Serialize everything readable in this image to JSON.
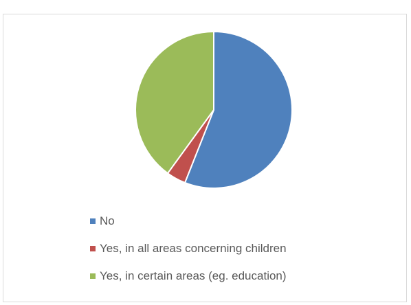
{
  "chart_data": {
    "type": "pie",
    "title": "",
    "categories": [
      "No",
      "Yes, in all areas concerning children",
      "Yes, in certain areas (eg. education)"
    ],
    "values": [
      56,
      4,
      40
    ],
    "colors": [
      "#4f81bd",
      "#c0504d",
      "#9bbb59"
    ],
    "start_angle_deg": 0,
    "direction": "clockwise",
    "legend_position": "bottom-left",
    "grid": false
  }
}
